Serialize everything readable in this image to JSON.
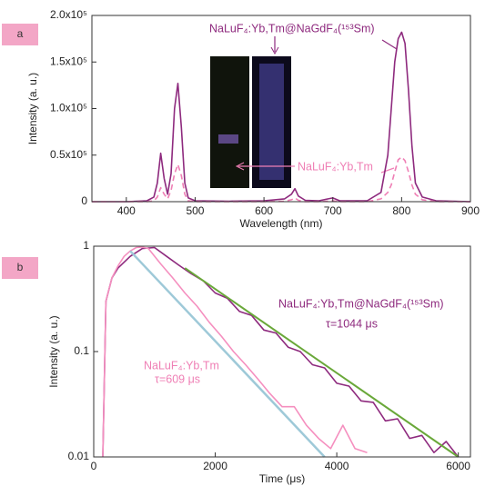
{
  "chart_data": [
    {
      "type": "line",
      "panel_label": "a",
      "x_label": "Wavelength (nm)",
      "y_label": "Intensity (a. u.)",
      "xlim": [
        350,
        900
      ],
      "xticks": [
        400,
        500,
        600,
        700,
        800,
        900
      ],
      "ylim": [
        0,
        200000
      ],
      "yticks": [
        0,
        {
          "value": 50000,
          "label": "0.5x10⁵"
        },
        {
          "value": 100000,
          "label": "1.0x10⁵"
        },
        {
          "value": 150000,
          "label": "1.5x10⁵"
        },
        {
          "value": 200000,
          "label": "2.0x10⁵"
        }
      ],
      "x": [
        350,
        400,
        430,
        440,
        445,
        450,
        455,
        460,
        465,
        470,
        475,
        480,
        485,
        490,
        500,
        550,
        600,
        630,
        640,
        645,
        650,
        660,
        680,
        690,
        700,
        710,
        750,
        770,
        780,
        785,
        790,
        795,
        800,
        805,
        810,
        815,
        820,
        830,
        850,
        900
      ],
      "series": [
        {
          "name": "NaLuF₄:Yb,Tm@NaGdF₄(¹⁵³Sm)",
          "color": "#8e2a7e",
          "dashed": false,
          "values": [
            0,
            0,
            1000,
            5000,
            20000,
            52000,
            25000,
            8000,
            30000,
            100000,
            127000,
            80000,
            20000,
            4000,
            1000,
            500,
            1000,
            3000,
            8000,
            14000,
            6000,
            1500,
            1000,
            2500,
            4000,
            1000,
            1000,
            10000,
            50000,
            100000,
            150000,
            175000,
            182000,
            170000,
            120000,
            60000,
            20000,
            5000,
            1000,
            0
          ]
        },
        {
          "name": "NaLuF₄:Yb,Tm",
          "color": "#ef7fb5",
          "dashed": true,
          "values": [
            0,
            0,
            0,
            1000,
            5000,
            15000,
            8000,
            3000,
            12000,
            30000,
            40000,
            28000,
            8000,
            1000,
            0,
            0,
            0,
            500,
            2000,
            4000,
            1500,
            0,
            0,
            500,
            1000,
            0,
            0,
            3000,
            10000,
            18000,
            32000,
            45000,
            48000,
            44000,
            32000,
            18000,
            8000,
            2000,
            0,
            0
          ]
        }
      ]
    },
    {
      "type": "line",
      "panel_label": "b",
      "x_label": "Time (μs)",
      "y_label": "Intensity (a. u.)",
      "log_y": true,
      "xlim": [
        0,
        6200
      ],
      "xticks": [
        0,
        2000,
        4000,
        6000
      ],
      "ylim": [
        0.01,
        1
      ],
      "yticks": [
        0.01,
        0.1,
        1
      ],
      "annotations": [
        "τ=1044 μs",
        "τ=609 μs"
      ],
      "series": [
        {
          "name": "NaLuF₄:Yb,Tm@NaGdF₄(¹⁵³Sm)",
          "color": "#8e2a7e",
          "dashed": false,
          "x": [
            150,
            200,
            300,
            400,
            600,
            800,
            1000,
            1200,
            1400,
            1600,
            1800,
            2000,
            2200,
            2400,
            2600,
            2800,
            3000,
            3200,
            3400,
            3600,
            3800,
            4000,
            4200,
            4400,
            4600,
            4800,
            5000,
            5200,
            5400,
            5600,
            5800,
            6000
          ],
          "values": [
            0.01,
            0.3,
            0.5,
            0.62,
            0.8,
            0.95,
            0.97,
            0.8,
            0.66,
            0.55,
            0.47,
            0.36,
            0.32,
            0.24,
            0.22,
            0.16,
            0.15,
            0.11,
            0.1,
            0.075,
            0.07,
            0.05,
            0.047,
            0.034,
            0.033,
            0.022,
            0.023,
            0.015,
            0.016,
            0.011,
            0.014,
            0.01
          ]
        },
        {
          "name": "NaLuF₄:Yb,Tm",
          "color": "#f58fbf",
          "dashed": false,
          "x": [
            150,
            200,
            300,
            400,
            500,
            600,
            700,
            800,
            900,
            1100,
            1300,
            1500,
            1700,
            1900,
            2100,
            2300,
            2500,
            2700,
            2900,
            3100,
            3300,
            3500,
            3700,
            3900,
            4100,
            4300,
            4500
          ],
          "values": [
            0.01,
            0.3,
            0.5,
            0.65,
            0.8,
            0.9,
            0.97,
            0.98,
            0.95,
            0.68,
            0.5,
            0.36,
            0.27,
            0.19,
            0.14,
            0.1,
            0.075,
            0.055,
            0.04,
            0.03,
            0.03,
            0.02,
            0.015,
            0.012,
            0.02,
            0.012,
            0.011
          ]
        },
        {
          "color": "#6aa83a",
          "dashed": false,
          "width": 2,
          "x": [
            1500,
            6000
          ],
          "values": [
            0.62,
            0.01
          ]
        },
        {
          "color": "#9ec9d8",
          "dashed": false,
          "width": 2.5,
          "x": [
            600,
            3800
          ],
          "values": [
            0.9,
            0.01
          ]
        }
      ]
    }
  ]
}
